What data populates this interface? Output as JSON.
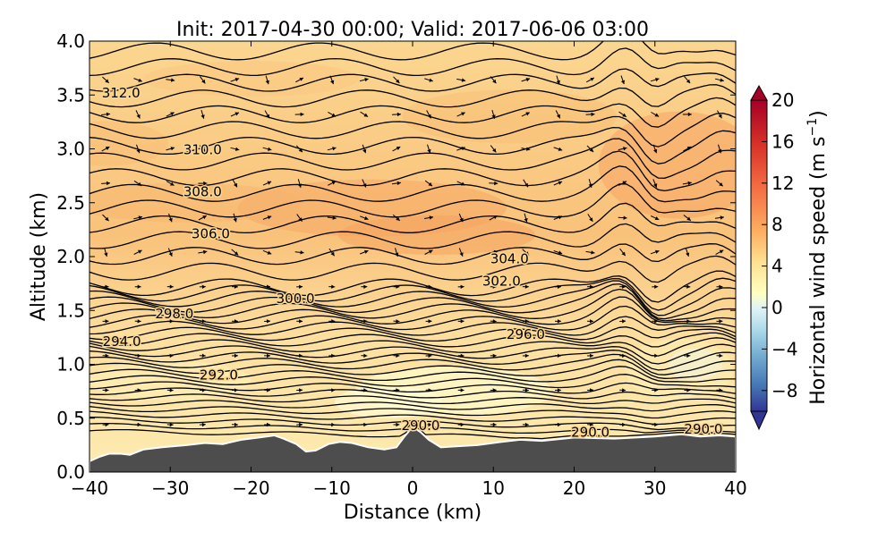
{
  "chart_data": {
    "type": "contour",
    "title": "Init: 2017-04-30 00:00; Valid: 2017-06-06 03:00",
    "xlabel": "Distance (km)",
    "ylabel": "Altitude (km)",
    "xlim": [
      -40,
      40
    ],
    "ylim": [
      0.0,
      4.0
    ],
    "x_ticks": [
      "−40",
      "−30",
      "−20",
      "−10",
      "0",
      "10",
      "20",
      "30",
      "40"
    ],
    "x_tick_values": [
      -40,
      -30,
      -20,
      -10,
      0,
      10,
      20,
      30,
      40
    ],
    "y_ticks": [
      "0.0",
      "0.5",
      "1.0",
      "1.5",
      "2.0",
      "2.5",
      "3.0",
      "3.5",
      "4.0"
    ],
    "y_tick_values": [
      0.0,
      0.5,
      1.0,
      1.5,
      2.0,
      2.5,
      3.0,
      3.5,
      4.0
    ],
    "colorbar": {
      "label": "Horizontal wind speed (m s$^{-1}$)",
      "label_main": "Horizontal wind speed (m s",
      "label_sup": "−1",
      "label_end": ")",
      "ticks": [
        "−8",
        "−4",
        "0",
        "4",
        "8",
        "12",
        "16",
        "20"
      ],
      "tick_values": [
        -8,
        -4,
        0,
        4,
        8,
        12,
        16,
        20
      ],
      "range": [
        -10,
        20
      ],
      "extend": "both",
      "colormap": "RdYlBu_r"
    },
    "theta_contour_labels": [
      {
        "text": "312.0",
        "x": -36.1,
        "z": 3.52
      },
      {
        "text": "310.0",
        "x": -26.0,
        "z": 2.99
      },
      {
        "text": "308.0",
        "x": -26.0,
        "z": 2.6
      },
      {
        "text": "306.0",
        "x": -25.0,
        "z": 2.21
      },
      {
        "text": "304.0",
        "x": 12.0,
        "z": 1.98
      },
      {
        "text": "302.0",
        "x": 11.0,
        "z": 1.77
      },
      {
        "text": "300.0",
        "x": -14.5,
        "z": 1.61
      },
      {
        "text": "298.0",
        "x": -29.5,
        "z": 1.47
      },
      {
        "text": "296.0",
        "x": 14.0,
        "z": 1.28
      },
      {
        "text": "294.0",
        "x": -36.0,
        "z": 1.21
      },
      {
        "text": "292.0",
        "x": -24.0,
        "z": 0.9
      },
      {
        "text": "290.0",
        "x": 1.0,
        "z": 0.43
      },
      {
        "text": "290.0",
        "x": 22.0,
        "z": 0.37
      },
      {
        "text": "290.0",
        "x": 36.0,
        "z": 0.4
      }
    ],
    "terrain": {
      "x": [
        -40,
        -38.8,
        -37.6,
        -36.1,
        -35,
        -33.3,
        -31,
        -28,
        -25.7,
        -23.5,
        -21.2,
        -19,
        -17.1,
        -16,
        -14.4,
        -13.2,
        -12,
        -10.4,
        -9,
        -7.5,
        -5.5,
        -3.5,
        -2,
        -1,
        0,
        1,
        2,
        3.5,
        5.6,
        8,
        11,
        13.3,
        16,
        20,
        25,
        30,
        33.3,
        35.6,
        38,
        40
      ],
      "z": [
        0.1,
        0.14,
        0.17,
        0.17,
        0.16,
        0.21,
        0.23,
        0.25,
        0.27,
        0.26,
        0.3,
        0.32,
        0.34,
        0.31,
        0.26,
        0.19,
        0.2,
        0.26,
        0.28,
        0.27,
        0.23,
        0.21,
        0.23,
        0.33,
        0.42,
        0.37,
        0.3,
        0.23,
        0.24,
        0.25,
        0.28,
        0.3,
        0.29,
        0.32,
        0.31,
        0.33,
        0.35,
        0.33,
        0.34,
        0.33
      ]
    },
    "colors": {
      "terrain": "#4d4d4d",
      "wind_fill_base": "#fbd58e",
      "wind_fill_high": "#f6a35f",
      "wind_fill_low": "#fdf3bd"
    }
  }
}
